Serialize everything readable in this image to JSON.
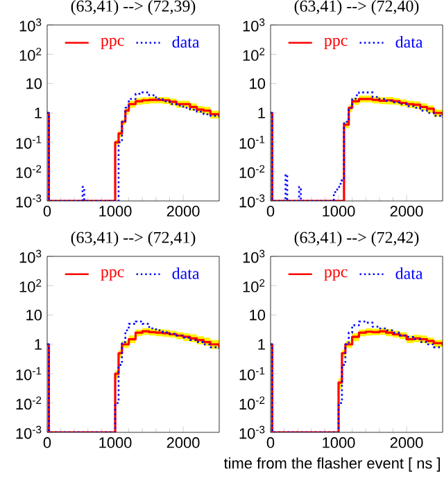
{
  "chart_data": [
    {
      "type": "step",
      "title": "(63,41) --> (72,39)",
      "xlim": [
        0,
        2530
      ],
      "ylim": [
        0.001,
        1000
      ],
      "log": "y",
      "legend": "top",
      "xticks": [
        0,
        1000,
        2000
      ],
      "yticks": [
        {
          "value": 0.001,
          "label": "10$^{-3}$"
        },
        {
          "value": 0.01,
          "label": "10$^{-2}$"
        },
        {
          "value": 0.1,
          "label": "10$^{-1}$"
        },
        1,
        10,
        {
          "value": 100,
          "label": "10$^{2}$"
        },
        {
          "value": 1000,
          "label": "10$^{3}$"
        }
      ],
      "series": [
        {
          "name": "ppc",
          "color": "#ff0000",
          "line_style": "solid",
          "x": [
            0,
            25,
            1000,
            1050,
            1100,
            1150,
            1200,
            1300,
            1400,
            1500,
            1600,
            1700,
            1800,
            1900,
            2000,
            2100,
            2200,
            2300,
            2400,
            2530
          ],
          "values": [
            1,
            0.001,
            0.1,
            0.2,
            0.5,
            1.2,
            2,
            2.5,
            2.7,
            2.8,
            2.8,
            2.7,
            2.4,
            2,
            2,
            1.6,
            1.3,
            1.2,
            0.9,
            0.8
          ],
          "lower": [
            1,
            0.001,
            0.08,
            0.15,
            0.4,
            0.9,
            1.5,
            1.9,
            2,
            2.1,
            2.1,
            2,
            1.8,
            1.5,
            1.5,
            1.2,
            1,
            0.9,
            0.65,
            0.6
          ],
          "upper": [
            1,
            0.001,
            0.12,
            0.25,
            0.6,
            1.5,
            2.6,
            3.2,
            3.4,
            3.5,
            3.5,
            3.4,
            3.1,
            2.6,
            2.6,
            2.1,
            1.7,
            1.6,
            1.2,
            1.1
          ]
        },
        {
          "name": "data",
          "color": "#0000ff",
          "line_style": "dotted",
          "x": [
            0,
            25,
            520,
            545,
            1000,
            1050,
            1100,
            1150,
            1200,
            1300,
            1400,
            1500,
            1600,
            1700,
            1800,
            1900,
            2000,
            2100,
            2200,
            2300,
            2400,
            2530
          ],
          "values": [
            1,
            0.001,
            0.003,
            0.001,
            0.001,
            0.1,
            0.5,
            1.5,
            3,
            4.5,
            5,
            4,
            3,
            2.5,
            2,
            1.8,
            1.5,
            1.3,
            1.1,
            0.9,
            0.8,
            0.7
          ]
        }
      ]
    },
    {
      "type": "step",
      "title": "(63,41) --> (72,40)",
      "xlim": [
        0,
        2530
      ],
      "ylim": [
        0.001,
        1000
      ],
      "log": "y",
      "legend": "top",
      "xticks": [
        0,
        1000,
        2000
      ],
      "yticks": [
        {
          "value": 0.001,
          "label": "10$^{-3}$"
        },
        {
          "value": 0.01,
          "label": "10$^{-2}$"
        },
        {
          "value": 0.1,
          "label": "10$^{-1}$"
        },
        1,
        10,
        {
          "value": 100,
          "label": "10$^{2}$"
        },
        {
          "value": 1000,
          "label": "10$^{3}$"
        }
      ],
      "series": [
        {
          "name": "ppc",
          "color": "#ff0000",
          "line_style": "solid",
          "x": [
            0,
            25,
            1080,
            1150,
            1200,
            1300,
            1400,
            1500,
            1600,
            1700,
            1800,
            1900,
            2000,
            2100,
            2200,
            2300,
            2400,
            2530
          ],
          "values": [
            1,
            0.001,
            0.4,
            1.5,
            2.5,
            3,
            3,
            2.8,
            2.6,
            2.7,
            2.5,
            2.2,
            2,
            1.9,
            1.6,
            1.4,
            1,
            0.8
          ],
          "lower": [
            1,
            0.001,
            0.3,
            1.1,
            1.9,
            2.3,
            2.3,
            2.1,
            2,
            1.95,
            1.9,
            1.7,
            1.5,
            1.4,
            1.2,
            1,
            0.75,
            0.6
          ],
          "upper": [
            1,
            0.001,
            0.5,
            1.9,
            3.2,
            3.9,
            3.9,
            3.6,
            3.4,
            3.5,
            3.2,
            2.9,
            2.6,
            2.5,
            2.1,
            1.8,
            1.3,
            1.3
          ]
        },
        {
          "name": "data",
          "color": "#0000ff",
          "line_style": "dotted",
          "x": [
            0,
            25,
            220,
            245,
            420,
            445,
            930,
            980,
            1030,
            1080,
            1150,
            1200,
            1250,
            1300,
            1400,
            1500,
            1600,
            1700,
            1800,
            1900,
            2000,
            2100,
            2200,
            2300,
            2400,
            2530
          ],
          "values": [
            1,
            0.001,
            0.008,
            0.001,
            0.003,
            0.001,
            0.002,
            0.003,
            0.005,
            0.5,
            1.5,
            3,
            4,
            5,
            5,
            3.5,
            3,
            2.6,
            2.3,
            2,
            1.7,
            1.5,
            1.2,
            1,
            0.8,
            0.7
          ]
        }
      ]
    },
    {
      "type": "step",
      "title": "(63,41) --> (72,41)",
      "xlim": [
        0,
        2530
      ],
      "ylim": [
        0.001,
        1000
      ],
      "log": "y",
      "legend": "top",
      "xticks": [
        0,
        1000,
        2000
      ],
      "yticks": [
        {
          "value": 0.001,
          "label": "10$^{-3}$"
        },
        {
          "value": 0.01,
          "label": "10$^{-2}$"
        },
        {
          "value": 0.1,
          "label": "10$^{-1}$"
        },
        1,
        10,
        {
          "value": 100,
          "label": "10$^{2}$"
        },
        {
          "value": 1000,
          "label": "10$^{3}$"
        }
      ],
      "series": [
        {
          "name": "ppc",
          "color": "#ff0000",
          "line_style": "solid",
          "x": [
            0,
            25,
            1000,
            1050,
            1100,
            1200,
            1300,
            1400,
            1500,
            1600,
            1700,
            1800,
            1900,
            2000,
            2100,
            2200,
            2300,
            2400,
            2530
          ],
          "values": [
            1,
            0.001,
            0.1,
            0.5,
            1,
            1.5,
            2.5,
            2.8,
            2.6,
            2.5,
            2.4,
            2.2,
            2,
            1.8,
            1.6,
            1.4,
            1.2,
            1,
            0.8
          ],
          "lower": [
            1,
            0.001,
            0.07,
            0.35,
            0.75,
            1.1,
            1.9,
            2.1,
            2,
            1.9,
            1.8,
            1.7,
            1.5,
            1.3,
            1.2,
            1,
            0.9,
            0.7,
            0.6
          ],
          "upper": [
            1,
            0.001,
            0.13,
            0.65,
            1.3,
            2,
            3.2,
            3.6,
            3.4,
            3.3,
            3.2,
            2.9,
            2.6,
            2.4,
            2.2,
            1.9,
            1.7,
            1.4,
            1.4
          ]
        },
        {
          "name": "data",
          "color": "#0000ff",
          "line_style": "dotted",
          "x": [
            0,
            25,
            1000,
            1050,
            1100,
            1150,
            1200,
            1300,
            1400,
            1500,
            1600,
            1700,
            1800,
            1900,
            2000,
            2100,
            2200,
            2300,
            2400,
            2530
          ],
          "values": [
            1,
            0.001,
            0.01,
            0.2,
            1.2,
            3,
            5,
            6,
            5,
            3.5,
            3,
            2.6,
            2.3,
            2,
            1.7,
            1.4,
            1.2,
            1,
            0.8,
            0.7
          ]
        }
      ]
    },
    {
      "type": "step",
      "title": "(63,41) --> (72,42)",
      "xlabel": "time from the flasher event [ ns ]",
      "xlim": [
        0,
        2530
      ],
      "ylim": [
        0.001,
        1000
      ],
      "log": "y",
      "legend": "top",
      "xticks": [
        0,
        1000,
        2000
      ],
      "yticks": [
        {
          "value": 0.001,
          "label": "10$^{-3}$"
        },
        {
          "value": 0.01,
          "label": "10$^{-2}$"
        },
        {
          "value": 0.1,
          "label": "10$^{-1}$"
        },
        1,
        10,
        {
          "value": 100,
          "label": "10$^{2}$"
        },
        {
          "value": 1000,
          "label": "10$^{3}$"
        }
      ],
      "series": [
        {
          "name": "ppc",
          "color": "#ff0000",
          "line_style": "solid",
          "x": [
            0,
            25,
            1000,
            1050,
            1100,
            1200,
            1300,
            1400,
            1500,
            1600,
            1700,
            1800,
            1900,
            2000,
            2100,
            2200,
            2300,
            2400,
            2530
          ],
          "values": [
            1,
            0.001,
            0.05,
            0.5,
            1,
            1.8,
            2.5,
            2.7,
            2.6,
            2.8,
            2.5,
            2.2,
            2,
            1.5,
            1.6,
            1.5,
            1.3,
            1.1,
            0.9
          ],
          "lower": [
            1,
            0.001,
            0.03,
            0.35,
            0.75,
            1.3,
            1.9,
            2,
            2.05,
            2.1,
            1.9,
            1.7,
            1.5,
            1.1,
            1.2,
            1.1,
            1,
            0.8,
            0.7
          ],
          "upper": [
            1,
            0.001,
            0.07,
            0.65,
            1.3,
            2.4,
            3.2,
            3.5,
            3.4,
            3.6,
            3.3,
            2.9,
            2.6,
            2,
            2.1,
            2,
            1.7,
            1.4,
            1.2
          ]
        },
        {
          "name": "data",
          "color": "#0000ff",
          "line_style": "dotted",
          "x": [
            0,
            25,
            1000,
            1050,
            1100,
            1150,
            1200,
            1300,
            1400,
            1500,
            1600,
            1700,
            1800,
            1900,
            2000,
            2100,
            2200,
            2300,
            2400,
            2530
          ],
          "values": [
            1,
            0.001,
            0.01,
            0.2,
            1,
            2.5,
            4.5,
            6,
            5.5,
            4,
            3.5,
            3,
            2.5,
            2,
            1.8,
            1.5,
            1.2,
            1,
            0.8,
            0.8
          ]
        }
      ]
    }
  ]
}
